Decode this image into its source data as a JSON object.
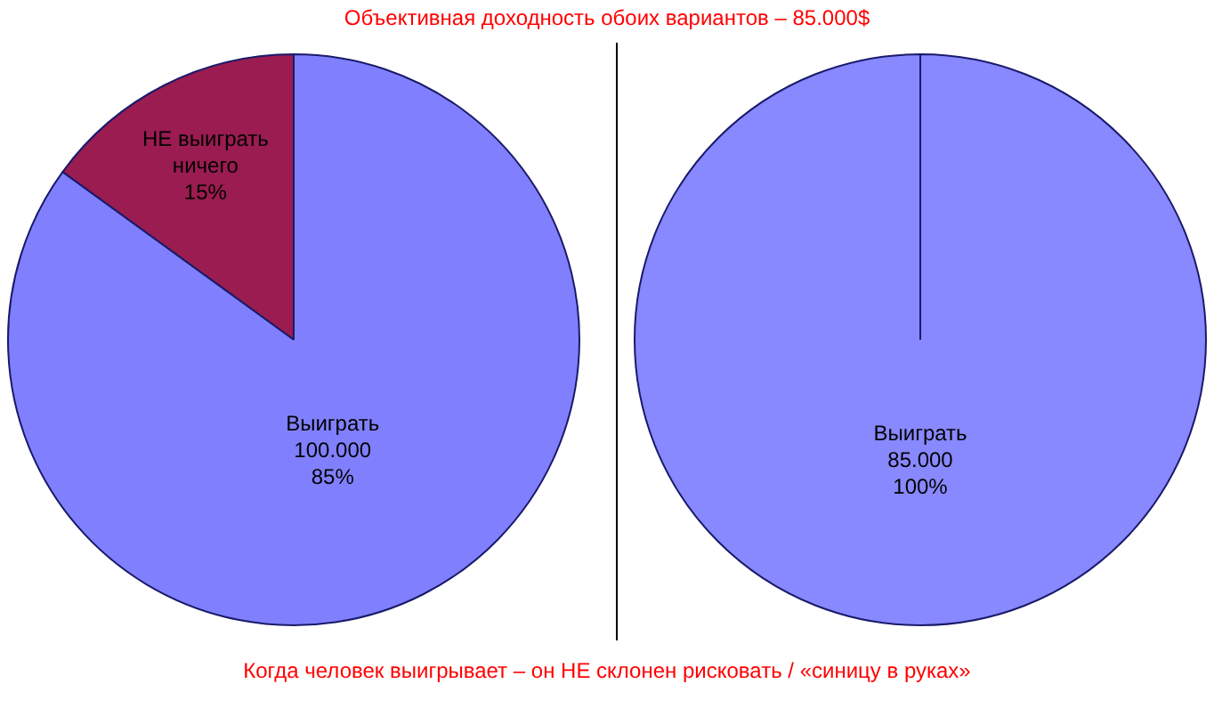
{
  "chart_data": [
    {
      "type": "pie",
      "title": "Объективная доходность обоих вариантов – 85.000$",
      "categories": [
        "НЕ выиграть\nничего",
        "Выиграть\n100.000"
      ],
      "values": [
        15,
        85
      ],
      "colors": [
        "#9a1c50",
        "#8080ff"
      ],
      "value_labels": [
        "15%",
        "85%"
      ]
    },
    {
      "type": "pie",
      "categories": [
        "Выиграть\n85.000"
      ],
      "values": [
        100
      ],
      "colors": [
        "#8888ff"
      ],
      "value_labels": [
        "100%"
      ],
      "annotations": [
        "Когда человек выигрывает – он НЕ склонен рисковать / «синицу в руках»"
      ]
    }
  ]
}
